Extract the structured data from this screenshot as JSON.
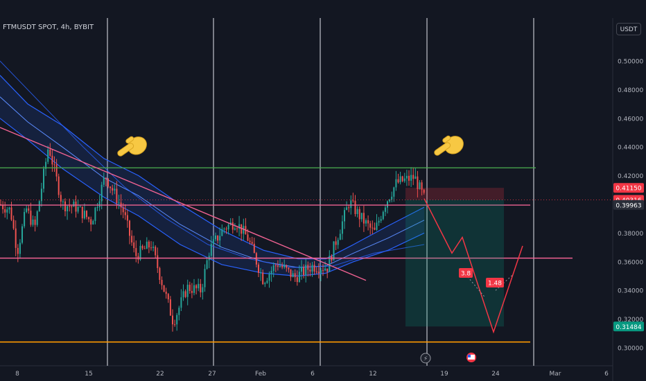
{
  "header": {
    "symbol": "FTMUSDT SPOT, 4h, BYBIT",
    "currency": "USDT"
  },
  "chart_data": {
    "type": "candlestick",
    "ylim": [
      0.29,
      0.53
    ],
    "y_ticks": [
      "0.50000",
      "0.48000",
      "0.46000",
      "0.44000",
      "0.42000",
      "0.40000",
      "0.38000",
      "0.36000",
      "0.34000",
      "0.32000",
      "0.30000"
    ],
    "x_ticks": [
      "8",
      "15",
      "22",
      "27",
      "Feb",
      "6",
      "12",
      "19",
      "24",
      "Mar",
      "6"
    ],
    "price_labels": [
      {
        "text": "0.41150",
        "value": 0.4115,
        "color": "#f23645"
      },
      {
        "text": "0.40316",
        "value": 0.40316,
        "color": "#f23645"
      },
      {
        "text": "0.39963",
        "value": 0.39963,
        "color": "#2a2e39"
      },
      {
        "text": "0.31484",
        "value": 0.31484,
        "color": "#089981"
      }
    ],
    "horizontal_levels": [
      {
        "value": 0.4255,
        "color": "#4caf50"
      },
      {
        "value": 0.3995,
        "color": "#f06292"
      },
      {
        "value": 0.3625,
        "color": "#f06292"
      },
      {
        "value": 0.304,
        "color": "#ff9800"
      }
    ],
    "trendline_value_range": [
      0.4536,
      0.347
    ],
    "projection_labels": [
      "3.8",
      "1.48"
    ],
    "position": {
      "stop": 0.4115,
      "entry": 0.40316,
      "target": 0.31484
    },
    "annotations": [
      "pointing-hand-emoji",
      "pointing-hand-emoji"
    ]
  }
}
